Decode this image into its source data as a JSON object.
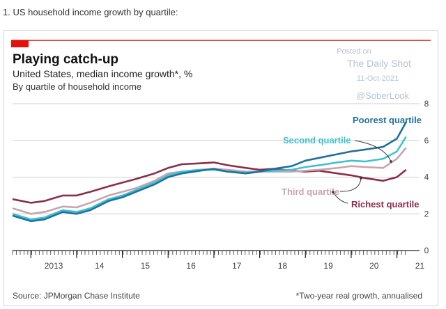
{
  "caption": "1. US household income growth by quartile:",
  "watermark": {
    "line1": "Posted on",
    "line2": "The Daily Shot",
    "line3": "11-Oct-2021",
    "line4": "@SoberLook"
  },
  "colors": {
    "red_rule": "#e3120b",
    "poorest": "#1f6f9f",
    "second": "#3fc2cf",
    "third": "#c9a3ad",
    "richest": "#8a2e4a",
    "grid": "#cfcfcf",
    "watermark": "#b8c0d8"
  },
  "chart_data": {
    "type": "line",
    "title": "Playing catch-up",
    "subtitle": "United States, median income growth*, %",
    "subtitle2": "By quartile of household income",
    "source": "Source: JPMorgan Chase Institute",
    "footnote": "*Two-year real growth, annualised",
    "ylim": [
      0,
      8
    ],
    "y_ticks": [
      0,
      2,
      4,
      6,
      8
    ],
    "xlim": [
      2012.6,
      2021.25
    ],
    "x_tick_labels": [
      {
        "label": "2013",
        "x": 2013
      },
      {
        "label": "14",
        "x": 2014
      },
      {
        "label": "15",
        "x": 2015
      },
      {
        "label": "16",
        "x": 2016
      },
      {
        "label": "17",
        "x": 2017
      },
      {
        "label": "18",
        "x": 2018
      },
      {
        "label": "19",
        "x": 2019
      },
      {
        "label": "20",
        "x": 2020
      },
      {
        "label": "21",
        "x": 2021
      }
    ],
    "series": [
      {
        "name": "Richest quartile",
        "color": "#8a2e4a",
        "x": [
          2012.6,
          2013.0,
          2013.3,
          2013.7,
          2014.0,
          2014.3,
          2014.7,
          2015.0,
          2015.3,
          2015.7,
          2016.0,
          2016.3,
          2016.7,
          2017.0,
          2017.3,
          2017.7,
          2018.0,
          2018.3,
          2018.7,
          2019.0,
          2019.3,
          2019.7,
          2020.0,
          2020.3,
          2020.7,
          2021.0,
          2021.2
        ],
        "y": [
          2.8,
          2.6,
          2.7,
          3.0,
          3.0,
          3.2,
          3.5,
          3.7,
          3.9,
          4.2,
          4.5,
          4.7,
          4.75,
          4.8,
          4.65,
          4.5,
          4.4,
          4.45,
          4.35,
          4.3,
          4.35,
          4.2,
          4.1,
          3.95,
          3.8,
          4.0,
          4.4
        ]
      },
      {
        "name": "Third quartile",
        "color": "#c9a3ad",
        "x": [
          2012.6,
          2013.0,
          2013.3,
          2013.7,
          2014.0,
          2014.3,
          2014.7,
          2015.0,
          2015.3,
          2015.7,
          2016.0,
          2016.3,
          2016.7,
          2017.0,
          2017.3,
          2017.7,
          2018.0,
          2018.3,
          2018.7,
          2019.0,
          2019.3,
          2019.7,
          2020.0,
          2020.3,
          2020.7,
          2021.0,
          2021.2
        ],
        "y": [
          2.3,
          2.0,
          2.1,
          2.4,
          2.35,
          2.6,
          3.0,
          3.2,
          3.4,
          3.8,
          4.2,
          4.3,
          4.4,
          4.45,
          4.4,
          4.3,
          4.3,
          4.3,
          4.3,
          4.35,
          4.4,
          4.5,
          4.6,
          4.55,
          4.5,
          5.0,
          5.6
        ]
      },
      {
        "name": "Second quartile",
        "color": "#3fc2cf",
        "x": [
          2012.6,
          2013.0,
          2013.3,
          2013.7,
          2014.0,
          2014.3,
          2014.7,
          2015.0,
          2015.3,
          2015.7,
          2016.0,
          2016.3,
          2016.7,
          2017.0,
          2017.3,
          2017.7,
          2018.0,
          2018.3,
          2018.7,
          2019.0,
          2019.3,
          2019.7,
          2020.0,
          2020.3,
          2020.7,
          2021.0,
          2021.2
        ],
        "y": [
          2.0,
          1.7,
          1.8,
          2.2,
          2.1,
          2.3,
          2.8,
          3.0,
          3.3,
          3.7,
          4.1,
          4.3,
          4.4,
          4.4,
          4.3,
          4.25,
          4.3,
          4.35,
          4.4,
          4.55,
          4.65,
          4.8,
          4.9,
          4.85,
          5.0,
          5.4,
          6.2
        ]
      },
      {
        "name": "Poorest quartile",
        "color": "#1f6f9f",
        "x": [
          2012.6,
          2013.0,
          2013.3,
          2013.7,
          2014.0,
          2014.3,
          2014.7,
          2015.0,
          2015.3,
          2015.7,
          2016.0,
          2016.3,
          2016.7,
          2017.0,
          2017.3,
          2017.7,
          2018.0,
          2018.3,
          2018.7,
          2019.0,
          2019.3,
          2019.7,
          2020.0,
          2020.3,
          2020.7,
          2021.0,
          2021.2
        ],
        "y": [
          1.9,
          1.6,
          1.7,
          2.1,
          2.0,
          2.2,
          2.7,
          2.9,
          3.2,
          3.6,
          4.0,
          4.2,
          4.35,
          4.45,
          4.3,
          4.2,
          4.3,
          4.45,
          4.6,
          4.9,
          5.05,
          5.25,
          5.4,
          5.5,
          5.65,
          6.1,
          7.0
        ]
      }
    ],
    "annotations": [
      {
        "series": "Poorest quartile",
        "text": "Poorest quartile",
        "color": "#1f6f9f"
      },
      {
        "series": "Second quartile",
        "text": "Second quartile",
        "color": "#3fc2cf"
      },
      {
        "series": "Third quartile",
        "text": "Third quartile",
        "color": "#c9a3ad"
      },
      {
        "series": "Richest quartile",
        "text": "Richest quartile",
        "color": "#8a2e4a"
      }
    ],
    "grid": true
  }
}
